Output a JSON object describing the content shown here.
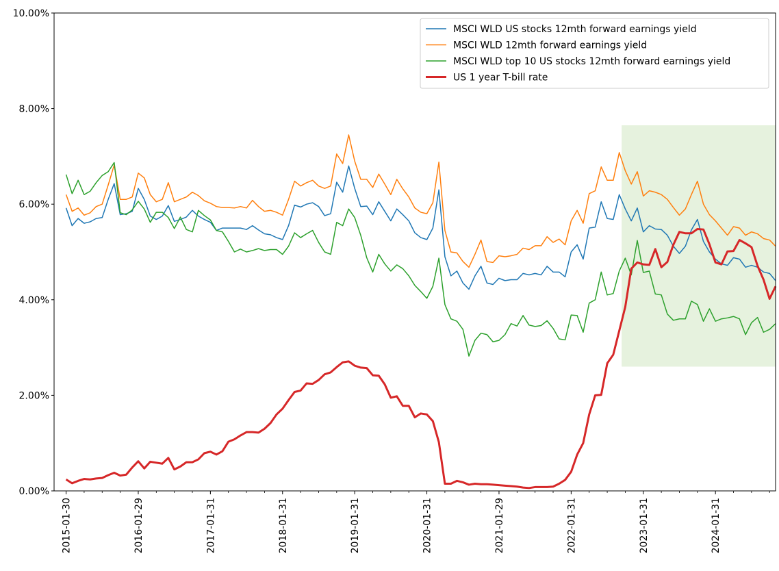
{
  "chart_data": {
    "type": "line",
    "title": "",
    "xlabel": "",
    "ylabel": "",
    "ylim": [
      0,
      10
    ],
    "ytick_format": "percent_2dp",
    "yticks": [
      0,
      2,
      4,
      6,
      8,
      10
    ],
    "ytick_labels": [
      "0.00%",
      "2.00%",
      "4.00%",
      "6.00%",
      "8.00%",
      "10.00%"
    ],
    "x_start": "2015-01-30",
    "x_end": "2024-10-31",
    "xlim_months": [
      -2,
      118
    ],
    "xticks_months": [
      0,
      12,
      24,
      36,
      48,
      60,
      72,
      84,
      96,
      108
    ],
    "xtick_labels": [
      "2015-01-30",
      "2016-01-29",
      "2017-01-31",
      "2018-01-31",
      "2019-01-31",
      "2020-01-31",
      "2021-01-29",
      "2022-01-31",
      "2023-01-31",
      "2024-01-31"
    ],
    "minor_xticks_months": [
      3,
      6,
      9,
      15,
      18,
      21,
      27,
      30,
      33,
      39,
      42,
      45,
      51,
      54,
      57,
      63,
      66,
      69,
      75,
      78,
      81,
      87,
      90,
      93,
      99,
      102,
      105,
      111,
      114,
      117
    ],
    "highlight_region": {
      "x_start_month": 92.4,
      "x_end_month": 122,
      "y_start": 2.6,
      "y_end": 7.65,
      "color": "#e6f2de"
    },
    "legend_position": "upper-right",
    "series": [
      {
        "name": "MSCI WLD US stocks 12mth forward earnings yield",
        "color": "#1f77b4",
        "width": 1.5,
        "values": [
          5.92,
          5.55,
          5.7,
          5.6,
          5.63,
          5.7,
          5.72,
          6.1,
          6.43,
          5.78,
          5.8,
          5.85,
          6.33,
          6.1,
          5.75,
          5.68,
          5.75,
          5.97,
          5.64,
          5.68,
          5.73,
          5.87,
          5.75,
          5.68,
          5.62,
          5.45,
          5.5,
          5.5,
          5.5,
          5.5,
          5.47,
          5.55,
          5.46,
          5.38,
          5.36,
          5.3,
          5.26,
          5.55,
          5.98,
          5.94,
          6.0,
          6.03,
          5.95,
          5.76,
          5.8,
          6.46,
          6.25,
          6.8,
          6.33,
          5.95,
          5.96,
          5.78,
          6.05,
          5.85,
          5.65,
          5.9,
          5.78,
          5.65,
          5.4,
          5.3,
          5.26,
          5.5,
          6.3,
          4.9,
          4.5,
          4.6,
          4.35,
          4.22,
          4.5,
          4.7,
          4.35,
          4.32,
          4.45,
          4.4,
          4.42,
          4.42,
          4.55,
          4.52,
          4.55,
          4.52,
          4.7,
          4.58,
          4.58,
          4.48,
          5.0,
          5.15,
          4.85,
          5.5,
          5.52,
          6.05,
          5.7,
          5.68,
          6.2,
          5.9,
          5.65,
          5.92,
          5.42,
          5.55,
          5.48,
          5.47,
          5.35,
          5.12,
          4.97,
          5.12,
          5.46,
          5.68,
          5.22,
          5.0,
          4.85,
          4.75,
          4.72,
          4.88,
          4.85,
          4.68,
          4.72,
          4.68,
          4.58,
          4.55,
          4.4
        ]
      },
      {
        "name": "MSCI WLD 12mth forward earnings yield",
        "color": "#ff7f0e",
        "width": 1.5,
        "values": [
          6.2,
          5.85,
          5.92,
          5.77,
          5.82,
          5.95,
          6.0,
          6.4,
          6.82,
          6.1,
          6.1,
          6.15,
          6.65,
          6.55,
          6.2,
          6.05,
          6.1,
          6.45,
          6.05,
          6.1,
          6.15,
          6.25,
          6.18,
          6.07,
          6.02,
          5.95,
          5.93,
          5.93,
          5.92,
          5.95,
          5.92,
          6.08,
          5.95,
          5.85,
          5.87,
          5.83,
          5.77,
          6.1,
          6.48,
          6.38,
          6.45,
          6.5,
          6.38,
          6.33,
          6.38,
          7.05,
          6.85,
          7.45,
          6.9,
          6.52,
          6.52,
          6.35,
          6.63,
          6.42,
          6.2,
          6.52,
          6.32,
          6.15,
          5.92,
          5.83,
          5.8,
          6.03,
          6.88,
          5.45,
          5.0,
          4.98,
          4.8,
          4.68,
          4.95,
          5.25,
          4.8,
          4.78,
          4.92,
          4.9,
          4.92,
          4.95,
          5.08,
          5.05,
          5.13,
          5.13,
          5.32,
          5.2,
          5.27,
          5.15,
          5.65,
          5.87,
          5.6,
          6.22,
          6.28,
          6.78,
          6.5,
          6.5,
          7.08,
          6.7,
          6.42,
          6.68,
          6.17,
          6.28,
          6.25,
          6.2,
          6.1,
          5.93,
          5.77,
          5.9,
          6.2,
          6.48,
          6.0,
          5.78,
          5.65,
          5.5,
          5.35,
          5.53,
          5.5,
          5.35,
          5.42,
          5.38,
          5.28,
          5.25,
          5.12
        ]
      },
      {
        "name": "MSCI WLD top 10 US stocks 12mth forward earnings yield",
        "color": "#2ca02c",
        "width": 1.5,
        "values": [
          6.62,
          6.22,
          6.5,
          6.2,
          6.27,
          6.45,
          6.6,
          6.68,
          6.87,
          5.82,
          5.78,
          5.88,
          6.06,
          5.9,
          5.62,
          5.83,
          5.83,
          5.72,
          5.49,
          5.73,
          5.47,
          5.42,
          5.87,
          5.76,
          5.67,
          5.45,
          5.42,
          5.22,
          5.0,
          5.06,
          5.0,
          5.03,
          5.07,
          5.03,
          5.05,
          5.05,
          4.95,
          5.12,
          5.4,
          5.3,
          5.38,
          5.45,
          5.2,
          5.0,
          4.95,
          5.62,
          5.55,
          5.9,
          5.72,
          5.35,
          4.88,
          4.58,
          4.95,
          4.75,
          4.6,
          4.73,
          4.65,
          4.5,
          4.3,
          4.17,
          4.03,
          4.28,
          4.87,
          3.9,
          3.6,
          3.55,
          3.38,
          2.82,
          3.15,
          3.3,
          3.27,
          3.12,
          3.15,
          3.27,
          3.5,
          3.45,
          3.67,
          3.47,
          3.44,
          3.46,
          3.56,
          3.4,
          3.18,
          3.16,
          3.68,
          3.67,
          3.32,
          3.93,
          4.0,
          4.58,
          4.1,
          4.13,
          4.6,
          4.87,
          4.52,
          5.24,
          4.57,
          4.6,
          4.12,
          4.1,
          3.7,
          3.57,
          3.6,
          3.6,
          3.97,
          3.9,
          3.55,
          3.81,
          3.55,
          3.6,
          3.62,
          3.65,
          3.6,
          3.27,
          3.52,
          3.63,
          3.32,
          3.38,
          3.5
        ]
      },
      {
        "name": "US 1 year T-bill rate",
        "color": "#d62728",
        "width": 3,
        "values": [
          0.24,
          0.16,
          0.21,
          0.25,
          0.24,
          0.26,
          0.27,
          0.33,
          0.38,
          0.32,
          0.34,
          0.49,
          0.62,
          0.47,
          0.61,
          0.59,
          0.57,
          0.69,
          0.45,
          0.51,
          0.6,
          0.6,
          0.66,
          0.79,
          0.82,
          0.76,
          0.83,
          1.03,
          1.08,
          1.16,
          1.23,
          1.23,
          1.22,
          1.3,
          1.42,
          1.6,
          1.72,
          1.9,
          2.07,
          2.1,
          2.25,
          2.24,
          2.32,
          2.44,
          2.48,
          2.59,
          2.69,
          2.71,
          2.62,
          2.58,
          2.57,
          2.42,
          2.41,
          2.23,
          1.95,
          1.98,
          1.78,
          1.78,
          1.54,
          1.62,
          1.6,
          1.46,
          1.02,
          0.15,
          0.15,
          0.21,
          0.18,
          0.13,
          0.15,
          0.14,
          0.14,
          0.13,
          0.12,
          0.11,
          0.1,
          0.09,
          0.07,
          0.06,
          0.08,
          0.08,
          0.08,
          0.09,
          0.15,
          0.23,
          0.4,
          0.76,
          1.0,
          1.6,
          2.0,
          2.01,
          2.67,
          2.85,
          3.35,
          3.85,
          4.65,
          4.78,
          4.74,
          4.73,
          5.06,
          4.68,
          4.79,
          5.15,
          5.42,
          5.39,
          5.39,
          5.48,
          5.47,
          5.16,
          4.78,
          4.74,
          5.01,
          5.02,
          5.25,
          5.18,
          5.1,
          4.71,
          4.42,
          4.02,
          4.28
        ]
      }
    ]
  }
}
